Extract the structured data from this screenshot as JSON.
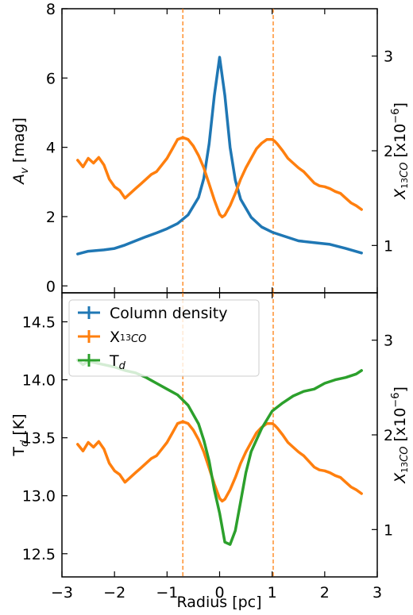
{
  "chart_data": [
    {
      "type": "line",
      "panel": "top",
      "xlim": [
        -3,
        3
      ],
      "ylim": [
        -0.2,
        8
      ],
      "y2lim": [
        0.5,
        3.5
      ],
      "x_ticks": [
        -3,
        -2,
        -1,
        0,
        1,
        2,
        3
      ],
      "y_ticks": [
        0,
        2,
        4,
        6,
        8
      ],
      "y2_ticks": [
        1,
        2,
        3
      ],
      "ylabel": "A_v [mag]",
      "y2label": "X_13CO [x10^-6]",
      "vlines": [
        -0.7,
        1.02
      ],
      "series": [
        {
          "name": "Column density",
          "axis": "left",
          "color": "#1f77b4",
          "x": [
            -2.7,
            -2.5,
            -2.2,
            -2.0,
            -1.8,
            -1.6,
            -1.4,
            -1.2,
            -1.0,
            -0.8,
            -0.6,
            -0.4,
            -0.3,
            -0.2,
            -0.1,
            0.0,
            0.1,
            0.2,
            0.3,
            0.4,
            0.6,
            0.8,
            1.0,
            1.2,
            1.5,
            1.8,
            2.1,
            2.4,
            2.7
          ],
          "y": [
            0.92,
            1.0,
            1.04,
            1.08,
            1.18,
            1.3,
            1.42,
            1.53,
            1.65,
            1.8,
            2.05,
            2.55,
            3.1,
            4.1,
            5.5,
            6.6,
            5.5,
            4.0,
            3.05,
            2.5,
            1.98,
            1.7,
            1.55,
            1.45,
            1.3,
            1.25,
            1.2,
            1.08,
            0.95
          ]
        },
        {
          "name": "X13CO",
          "axis": "right",
          "color": "#ff7f0e",
          "x": [
            -2.7,
            -2.6,
            -2.5,
            -2.4,
            -2.3,
            -2.2,
            -2.1,
            -2.0,
            -1.9,
            -1.8,
            -1.7,
            -1.6,
            -1.5,
            -1.4,
            -1.3,
            -1.2,
            -1.1,
            -1.0,
            -0.9,
            -0.8,
            -0.7,
            -0.6,
            -0.5,
            -0.4,
            -0.3,
            -0.2,
            -0.1,
            0.0,
            0.05,
            0.1,
            0.2,
            0.3,
            0.4,
            0.5,
            0.6,
            0.7,
            0.8,
            0.9,
            1.0,
            1.05,
            1.1,
            1.2,
            1.3,
            1.4,
            1.5,
            1.6,
            1.7,
            1.8,
            1.9,
            2.0,
            2.1,
            2.2,
            2.3,
            2.4,
            2.5,
            2.6,
            2.7
          ],
          "y": [
            1.9,
            1.83,
            1.92,
            1.87,
            1.93,
            1.85,
            1.7,
            1.62,
            1.58,
            1.5,
            1.55,
            1.6,
            1.65,
            1.7,
            1.75,
            1.78,
            1.85,
            1.92,
            2.02,
            2.12,
            2.14,
            2.12,
            2.05,
            1.95,
            1.82,
            1.65,
            1.48,
            1.33,
            1.3,
            1.32,
            1.42,
            1.55,
            1.7,
            1.82,
            1.92,
            2.02,
            2.08,
            2.12,
            2.12,
            2.1,
            2.07,
            2.0,
            1.92,
            1.87,
            1.82,
            1.78,
            1.72,
            1.66,
            1.63,
            1.62,
            1.6,
            1.57,
            1.55,
            1.5,
            1.45,
            1.42,
            1.38
          ]
        }
      ]
    },
    {
      "type": "line",
      "panel": "bottom",
      "xlim": [
        -3,
        3
      ],
      "ylim": [
        12.3,
        14.75
      ],
      "y2lim": [
        0.5,
        3.5
      ],
      "x_ticks": [
        -3,
        -2,
        -1,
        0,
        1,
        2,
        3
      ],
      "y_ticks": [
        12.5,
        13.0,
        13.5,
        14.0,
        14.5
      ],
      "y2_ticks": [
        1,
        2,
        3
      ],
      "xlabel": "Radius [pc]",
      "ylabel": "T_d [K]",
      "y2label": "X_13CO [x10^-6]",
      "vlines": [
        -0.7,
        1.02
      ],
      "legend": "top-left",
      "series": [
        {
          "name": "Column density",
          "axis": "left",
          "color": "#1f77b4",
          "x": [],
          "y": []
        },
        {
          "name": "X13CO",
          "axis": "right",
          "color": "#ff7f0e",
          "x": [
            -2.7,
            -2.6,
            -2.5,
            -2.4,
            -2.3,
            -2.2,
            -2.1,
            -2.0,
            -1.9,
            -1.8,
            -1.7,
            -1.6,
            -1.5,
            -1.4,
            -1.3,
            -1.2,
            -1.1,
            -1.0,
            -0.9,
            -0.8,
            -0.7,
            -0.6,
            -0.5,
            -0.4,
            -0.3,
            -0.2,
            -0.1,
            0.0,
            0.05,
            0.1,
            0.2,
            0.3,
            0.4,
            0.5,
            0.6,
            0.7,
            0.8,
            0.9,
            1.0,
            1.05,
            1.1,
            1.2,
            1.3,
            1.4,
            1.5,
            1.6,
            1.7,
            1.8,
            1.9,
            2.0,
            2.1,
            2.2,
            2.3,
            2.4,
            2.5,
            2.6,
            2.7
          ],
          "y": [
            1.9,
            1.83,
            1.92,
            1.87,
            1.93,
            1.85,
            1.7,
            1.62,
            1.58,
            1.5,
            1.55,
            1.6,
            1.65,
            1.7,
            1.75,
            1.78,
            1.85,
            1.92,
            2.02,
            2.12,
            2.14,
            2.12,
            2.05,
            1.95,
            1.82,
            1.65,
            1.48,
            1.33,
            1.3,
            1.32,
            1.42,
            1.55,
            1.7,
            1.82,
            1.92,
            2.02,
            2.08,
            2.12,
            2.12,
            2.1,
            2.07,
            2.0,
            1.92,
            1.87,
            1.82,
            1.78,
            1.72,
            1.66,
            1.63,
            1.62,
            1.6,
            1.57,
            1.55,
            1.5,
            1.45,
            1.42,
            1.38
          ]
        },
        {
          "name": "T_d",
          "axis": "left",
          "color": "#2ca02c",
          "x": [
            -2.7,
            -2.6,
            -2.5,
            -2.4,
            -2.2,
            -2.0,
            -1.8,
            -1.6,
            -1.4,
            -1.2,
            -1.0,
            -0.8,
            -0.6,
            -0.4,
            -0.3,
            -0.2,
            -0.1,
            0.0,
            0.1,
            0.2,
            0.3,
            0.4,
            0.5,
            0.6,
            0.8,
            1.0,
            1.2,
            1.4,
            1.6,
            1.8,
            2.0,
            2.2,
            2.4,
            2.6,
            2.7
          ],
          "y": [
            14.17,
            14.13,
            14.16,
            14.15,
            14.13,
            14.11,
            14.08,
            14.06,
            14.02,
            13.97,
            13.92,
            13.87,
            13.78,
            13.62,
            13.48,
            13.3,
            13.05,
            12.85,
            12.6,
            12.58,
            12.7,
            12.95,
            13.2,
            13.38,
            13.58,
            13.73,
            13.8,
            13.86,
            13.9,
            13.92,
            13.97,
            14.0,
            14.02,
            14.05,
            14.08
          ]
        }
      ]
    }
  ],
  "top_panel": {
    "x_ticks": [
      "−3",
      "−2",
      "−1",
      "0",
      "1",
      "2",
      "3"
    ],
    "y_ticks": [
      "0",
      "2",
      "4",
      "6",
      "8"
    ],
    "y2_ticks": [
      "1",
      "2",
      "3"
    ],
    "ylabel_main": "A",
    "ylabel_sub": "v",
    "ylabel_unit": " [mag]",
    "y2label_main": "X",
    "y2label_sub1": "13",
    "y2label_sub2": "CO",
    "y2label_unit": " [x10",
    "y2label_exp": "−6",
    "y2label_close": "]"
  },
  "bottom_panel": {
    "x_ticks": [
      "−3",
      "−2",
      "−1",
      "0",
      "1",
      "2",
      "3"
    ],
    "y_ticks": [
      "12.5",
      "13.0",
      "13.5",
      "14.0",
      "14.5"
    ],
    "y2_ticks": [
      "1",
      "2",
      "3"
    ],
    "xlabel": "Radius [pc]",
    "ylabel_main": "T",
    "ylabel_sub": "d",
    "ylabel_unit": " [K]",
    "y2label_main": "X",
    "y2label_sub1": "13",
    "y2label_sub2": "CO",
    "y2label_unit": " [x10",
    "y2label_exp": "−6",
    "y2label_close": "]",
    "legend": [
      {
        "label_main": "Column density",
        "label_sub": "",
        "color": "#1f77b4"
      },
      {
        "label_main": "X",
        "label_sup": "13",
        "label_sub": "CO",
        "color": "#ff7f0e"
      },
      {
        "label_main": "T",
        "label_sub": "d",
        "color": "#2ca02c"
      }
    ]
  },
  "colors": {
    "column_density": "#1f77b4",
    "x13co": "#ff7f0e",
    "td": "#2ca02c",
    "vline": "#ff7f0e"
  }
}
